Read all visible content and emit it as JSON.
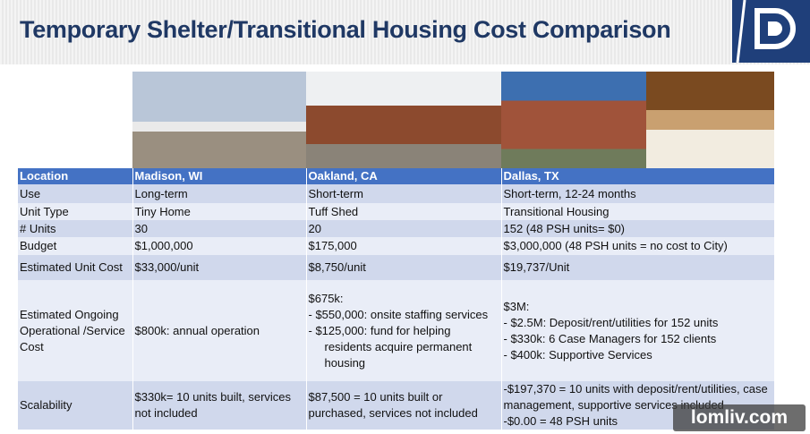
{
  "header": {
    "title": "Temporary Shelter/Transitional Housing Cost Comparison"
  },
  "table": {
    "header": [
      "Location",
      "Madison, WI",
      "Oakland, CA",
      "Dallas, TX"
    ],
    "rows": [
      [
        "Use",
        "Long-term",
        "Short-term",
        "Short-term, 12-24 months"
      ],
      [
        "Unit Type",
        "Tiny Home",
        "Tuff Shed",
        "Transitional Housing"
      ],
      [
        "# Units",
        "30",
        "20",
        "152 (48 PSH units= $0)"
      ],
      [
        "Budget",
        "$1,000,000",
        "$175,000",
        "$3,000,000 (48 PSH units = no cost to City)"
      ],
      [
        "Estimated Unit Cost",
        "$33,000/unit",
        "$8,750/unit",
        "$19,737/Unit"
      ],
      [
        "Estimated Ongoing Operational /Service Cost",
        "$800k: annual operation",
        [
          "$675k:",
          "- $550,000: onsite staffing services",
          "- $125,000: fund for helping residents acquire permanent housing"
        ],
        [
          "$3M:",
          "- $2.5M: Deposit/rent/utilities for 152 units",
          "- $330k: 6 Case Managers for 152 clients",
          "- $400k: Supportive Services"
        ]
      ],
      [
        "Scalability",
        "$330k= 10 units built, services not included",
        "$87,500 = 10 units built or purchased, services not included",
        [
          "-$197,370 = 10 units with deposit/rent/utilities, case management, supportive services included",
          "-$0.00 = 48 PSH units"
        ]
      ]
    ]
  },
  "watermark": "lomliv.com"
}
